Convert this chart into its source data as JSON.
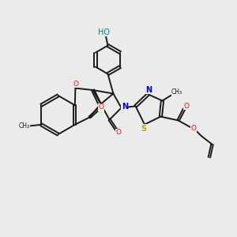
{
  "background_color": "#ebebeb",
  "bond_color": "#1a1a1a",
  "atom_colors": {
    "N": "#0000cc",
    "O": "#ff0000",
    "S": "#aaaa00",
    "HO": "#008080",
    "C": "#1a1a1a"
  },
  "figsize": [
    3.0,
    3.0
  ],
  "dpi": 100,
  "lw": 1.4,
  "off": 0.055
}
